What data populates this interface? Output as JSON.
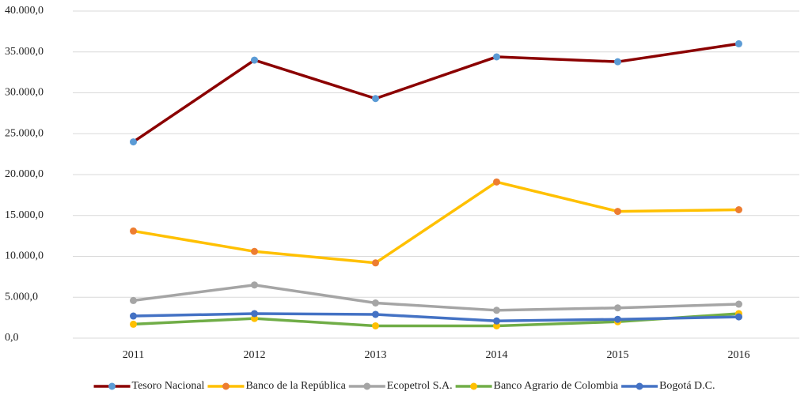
{
  "chart_data": {
    "type": "line",
    "categories": [
      "2011",
      "2012",
      "2013",
      "2014",
      "2015",
      "2016"
    ],
    "series": [
      {
        "name": "Tesoro Nacional",
        "color": "#8b0000",
        "marker_color": "#5b9bd5",
        "values": [
          24000,
          34000,
          29300,
          34400,
          33800,
          36000
        ]
      },
      {
        "name": "Banco de la República",
        "color": "#ffc000",
        "marker_color": "#ed7d31",
        "values": [
          13100,
          10600,
          9200,
          19100,
          15500,
          15700
        ]
      },
      {
        "name": "Ecopetrol S.A.",
        "color": "#a5a5a5",
        "marker_color": "#a5a5a5",
        "values": [
          4600,
          6500,
          4300,
          3400,
          3700,
          4150
        ]
      },
      {
        "name": "Banco Agrario de Colombia",
        "color": "#70ad47",
        "marker_color": "#ffc000",
        "values": [
          1700,
          2400,
          1500,
          1500,
          2000,
          3000
        ]
      },
      {
        "name": "Bogotá D.C.",
        "color": "#4472c4",
        "marker_color": "#4472c4",
        "values": [
          2700,
          3000,
          2900,
          2100,
          2300,
          2600
        ]
      }
    ],
    "ylim": [
      0,
      40000
    ],
    "yticks": [
      {
        "value": 0,
        "label": "0,0"
      },
      {
        "value": 5000,
        "label": "5.000,0"
      },
      {
        "value": 10000,
        "label": "10.000,0"
      },
      {
        "value": 15000,
        "label": "15.000,0"
      },
      {
        "value": 20000,
        "label": "20.000,0"
      },
      {
        "value": 25000,
        "label": "25.000,0"
      },
      {
        "value": 30000,
        "label": "30.000,0"
      },
      {
        "value": 35000,
        "label": "35.000,0"
      },
      {
        "value": 40000,
        "label": "40.000,0"
      }
    ],
    "grid": true,
    "legend": "bottom"
  }
}
